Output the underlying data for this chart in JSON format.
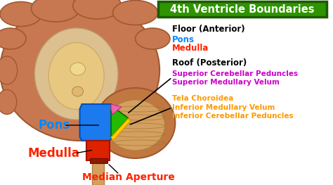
{
  "title": "4th Ventricle Boundaries",
  "title_bg": "#2e9400",
  "title_border": "#1a5c00",
  "title_color": "white",
  "bg_color": "white",
  "floor_header": "Floor (Anterior)",
  "floor_header_color": "#000000",
  "floor_items": [
    "Pons",
    "Medulla"
  ],
  "floor_colors": [
    "#0088ff",
    "#ff2200"
  ],
  "roof_header": "Roof (Posterior)",
  "roof_header_color": "#000000",
  "roof_items": [
    "Superior Cerebellar Peduncles",
    "Superior Medullary Velum"
  ],
  "roof_colors": [
    "#cc00cc",
    "#cc00cc"
  ],
  "tela_item": "Tela Choroidea",
  "tela_color": "#ff9900",
  "inferior_items": [
    "Inferior Medullary Velum",
    "Inferior Cerebellar Peduncles"
  ],
  "inferior_colors": [
    "#ff9900",
    "#ff9900"
  ],
  "label_pons": "Pons",
  "label_pons_color": "#0088ff",
  "label_medulla": "Medulla",
  "label_medulla_color": "#ff2200",
  "label_aperture": "Median Aperture",
  "label_aperture_color": "#ff2200",
  "arrow_color": "#000000",
  "brain_color": "#c87850",
  "brain_dark": "#a05830",
  "brain_inner": "#e8c890",
  "cerebellum_color": "#c07840",
  "pons_color": "#1a7aee",
  "pons_dark": "#0050bb",
  "medulla_color": "#dd2200",
  "cord_color": "#d4a060",
  "green_color": "#22bb00",
  "pink_color": "#ee66aa",
  "yellow_color": "#ffcc00"
}
